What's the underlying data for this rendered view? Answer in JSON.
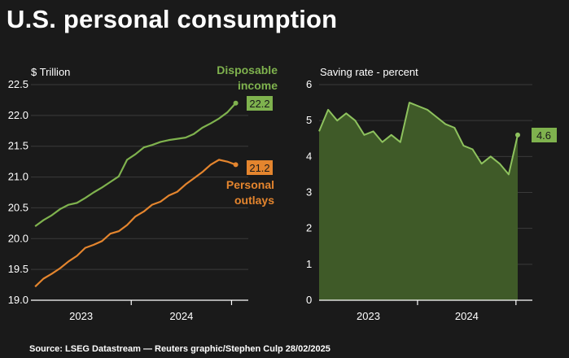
{
  "title": "U.S. personal consumption",
  "source": "Source: LSEG Datastream — Reuters graphic/Stephen Culp 28/02/2025",
  "colors": {
    "income": "#7fb24e",
    "outlays": "#e4852e",
    "saving_fill": "#3f5a28",
    "saving_line": "#8ec25e",
    "background": "#1a1a1a"
  },
  "chart_data": [
    {
      "type": "line",
      "unit_label": "$ Trillion",
      "ylim": [
        19.0,
        22.5
      ],
      "yticks": [
        "22.5",
        "22.0",
        "21.5",
        "21.0",
        "20.5",
        "20.0",
        "19.5",
        "19.0"
      ],
      "ytick_values": [
        22.5,
        22.0,
        21.5,
        21.0,
        20.5,
        20.0,
        19.5,
        19.0
      ],
      "xtick_labels": [
        "2023",
        "2024"
      ],
      "grid": true,
      "series": [
        {
          "name_lines": [
            "Disposable",
            "income"
          ],
          "color": "#7fb24e",
          "end_label": "22.2",
          "x": [
            "2023-01",
            "2023-02",
            "2023-03",
            "2023-04",
            "2023-05",
            "2023-06",
            "2023-07",
            "2023-08",
            "2023-09",
            "2023-10",
            "2023-11",
            "2023-12",
            "2024-01",
            "2024-02",
            "2024-03",
            "2024-04",
            "2024-05",
            "2024-06",
            "2024-07",
            "2024-08",
            "2024-09",
            "2024-10",
            "2024-11",
            "2024-12",
            "2025-01"
          ],
          "values": [
            20.2,
            20.3,
            20.38,
            20.48,
            20.55,
            20.58,
            20.66,
            20.75,
            20.83,
            20.92,
            21.01,
            21.28,
            21.37,
            21.48,
            21.52,
            21.57,
            21.6,
            21.62,
            21.64,
            21.7,
            21.8,
            21.87,
            21.95,
            22.05,
            22.2
          ]
        },
        {
          "name_lines": [
            "Personal",
            "outlays"
          ],
          "color": "#e4852e",
          "end_label": "21.2",
          "x": [
            "2023-01",
            "2023-02",
            "2023-03",
            "2023-04",
            "2023-05",
            "2023-06",
            "2023-07",
            "2023-08",
            "2023-09",
            "2023-10",
            "2023-11",
            "2023-12",
            "2024-01",
            "2024-02",
            "2024-03",
            "2024-04",
            "2024-05",
            "2024-06",
            "2024-07",
            "2024-08",
            "2024-09",
            "2024-10",
            "2024-11",
            "2024-12",
            "2025-01"
          ],
          "values": [
            19.22,
            19.35,
            19.43,
            19.52,
            19.63,
            19.72,
            19.85,
            19.9,
            19.96,
            20.08,
            20.12,
            20.22,
            20.36,
            20.44,
            20.55,
            20.6,
            20.7,
            20.76,
            20.88,
            20.98,
            21.08,
            21.2,
            21.28,
            21.25,
            21.2
          ]
        }
      ]
    },
    {
      "type": "area",
      "title": "Saving rate - percent",
      "ylim": [
        0,
        6
      ],
      "yticks": [
        "6",
        "5",
        "4",
        "3",
        "2",
        "1",
        "0"
      ],
      "ytick_values": [
        6,
        5,
        4,
        3,
        2,
        1,
        0
      ],
      "xtick_labels": [
        "2023",
        "2024"
      ],
      "grid": true,
      "series": [
        {
          "color": "#8ec25e",
          "end_label": "4.6",
          "x": [
            "2023-01",
            "2023-02",
            "2023-03",
            "2023-04",
            "2023-05",
            "2023-06",
            "2023-07",
            "2023-08",
            "2023-09",
            "2023-10",
            "2023-11",
            "2023-12",
            "2024-01",
            "2024-02",
            "2024-03",
            "2024-04",
            "2024-05",
            "2024-06",
            "2024-07",
            "2024-08",
            "2024-09",
            "2024-10",
            "2024-11",
            "2024-12",
            "2025-01"
          ],
          "values": [
            4.7,
            5.3,
            5.0,
            5.2,
            5.0,
            4.6,
            4.7,
            4.4,
            4.6,
            4.4,
            5.5,
            5.4,
            5.3,
            5.1,
            4.9,
            4.8,
            4.3,
            4.2,
            3.8,
            4.0,
            3.8,
            3.5,
            4.6,
            4.6,
            4.6
          ]
        }
      ]
    }
  ]
}
